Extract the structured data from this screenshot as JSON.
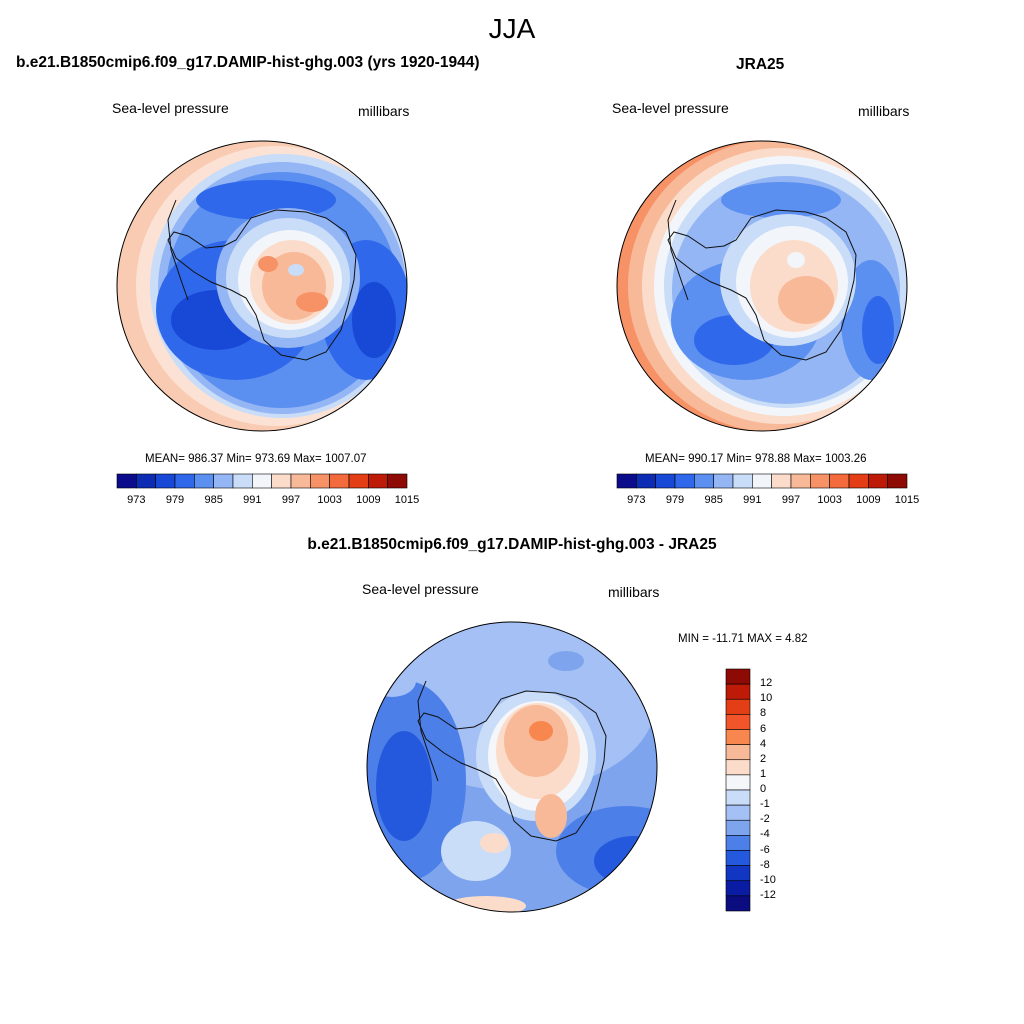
{
  "figure": {
    "title": "JJA"
  },
  "panels": [
    {
      "id": "model",
      "title": "b.e21.B1850cmip6.f09_g17.DAMIP-hist-ghg.003 (yrs 1920-1944)",
      "variable": "Sea-level pressure",
      "units": "millibars",
      "stats": "MEAN= 986.37  Min= 973.69  Max= 1007.07"
    },
    {
      "id": "obs",
      "title": "JRA25",
      "variable": "Sea-level pressure",
      "units": "millibars",
      "stats": "MEAN= 990.17  Min= 978.88  Max= 1003.26"
    },
    {
      "id": "diff",
      "title": "b.e21.B1850cmip6.f09_g17.DAMIP-hist-ghg.003 - JRA25",
      "variable": "Sea-level pressure",
      "units": "millibars",
      "stats": "MIN = -11.71 MAX =   4.82"
    }
  ],
  "colorbar_abs": {
    "tick_labels": [
      "973",
      "979",
      "985",
      "991",
      "997",
      "1003",
      "1009",
      "1015"
    ],
    "colors": [
      "#0a0c8c",
      "#0d2cb4",
      "#1848d6",
      "#2f68ea",
      "#5b8ff0",
      "#95b6f4",
      "#c9dcf8",
      "#f2f6fb",
      "#fbdcca",
      "#f8b998",
      "#f69266",
      "#f36a3c",
      "#e33e16",
      "#bd1a08",
      "#8e0a04"
    ]
  },
  "colorbar_diff": {
    "tick_labels": [
      "12",
      "10",
      "8",
      "6",
      "4",
      "2",
      "1",
      "0",
      "-1",
      "-2",
      "-4",
      "-6",
      "-8",
      "-10",
      "-12"
    ],
    "colors": [
      "#8e0a04",
      "#bd1a08",
      "#e33e16",
      "#f3552a",
      "#f7874f",
      "#f8b998",
      "#fbdcca",
      "#f4f6fa",
      "#c9dcf8",
      "#a4c0f4",
      "#7ea4ee",
      "#4d7fe8",
      "#2459de",
      "#1036c2",
      "#0a1ca4",
      "#0a0c80"
    ]
  }
}
